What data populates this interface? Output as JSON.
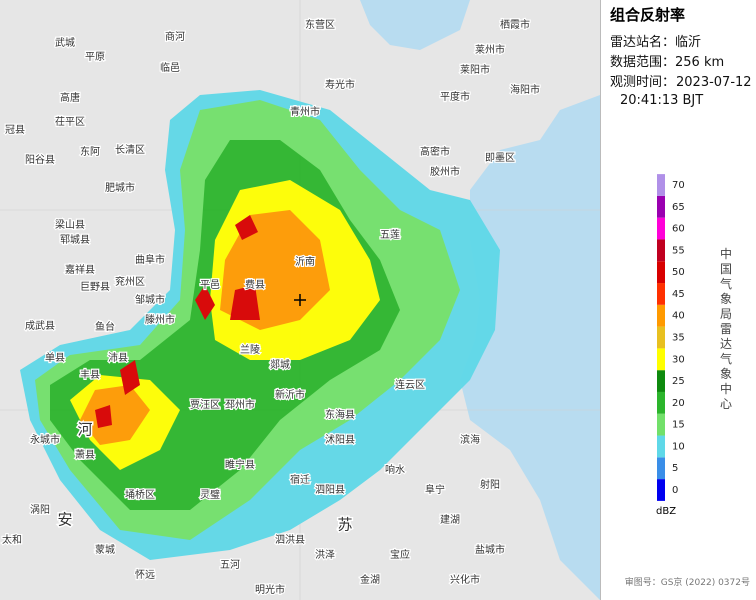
{
  "header": {
    "title": "组合反射率",
    "station": "雷达站名：临沂",
    "range": "数据范围：256 km",
    "time_label": "观测时间：",
    "date": "2023-07-12",
    "time": "20:41:13 BJT"
  },
  "legend": {
    "unit": "dBZ",
    "levels": [
      {
        "value": 0,
        "color": "#0000f0"
      },
      {
        "value": 5,
        "color": "#3a8ee8"
      },
      {
        "value": 10,
        "color": "#5fd8e8"
      },
      {
        "value": 15,
        "color": "#72e06a"
      },
      {
        "value": 20,
        "color": "#2cb52c"
      },
      {
        "value": 25,
        "color": "#0e8a0e"
      },
      {
        "value": 30,
        "color": "#ffff00"
      },
      {
        "value": 35,
        "color": "#e8c020"
      },
      {
        "value": 40,
        "color": "#ff9a00"
      },
      {
        "value": 45,
        "color": "#ff3000"
      },
      {
        "value": 50,
        "color": "#d80000"
      },
      {
        "value": 55,
        "color": "#c00020"
      },
      {
        "value": 60,
        "color": "#ff00d8"
      },
      {
        "value": 65,
        "color": "#9a00b0"
      },
      {
        "value": 70,
        "color": "#b090e8"
      }
    ]
  },
  "source": "中国气象局雷达气象中心",
  "approval": "审图号：GS京 (2022) 0372号",
  "places": [
    "武城",
    "平原",
    "临邑",
    "商河",
    "高唐",
    "茌平区",
    "东阿",
    "长清区",
    "肥城市",
    "冠县",
    "阳谷县",
    "梁山县",
    "郓城县",
    "嘉祥县",
    "巨野县",
    "兖州区",
    "曲阜市",
    "邹城市",
    "滕州市",
    "成武县",
    "单县",
    "鱼台",
    "沛县",
    "丰县",
    "贾汪区",
    "邳州市",
    "新沂市",
    "郯城",
    "兰陵",
    "费县",
    "平邑",
    "沂南",
    "五莲",
    "东海县",
    "连云区",
    "沭阳县",
    "睢宁县",
    "宿迁",
    "泗阳县",
    "响水",
    "滨海",
    "阜宁",
    "射阳",
    "建湖",
    "盐城市",
    "泗洪县",
    "灵璧",
    "埇桥区",
    "萧县",
    "永城市",
    "涡阳",
    "蒙城",
    "五河",
    "洪泽",
    "金湖",
    "宝应",
    "兴化市",
    "怀远",
    "明光市",
    "太和",
    "东营区",
    "寿光市",
    "青州市",
    "平度市",
    "莱州市",
    "栖霞市",
    "莱阳市",
    "海阳市",
    "即墨区",
    "高密市",
    "胶州市"
  ],
  "provinces": [
    "河",
    "安",
    "苏"
  ]
}
